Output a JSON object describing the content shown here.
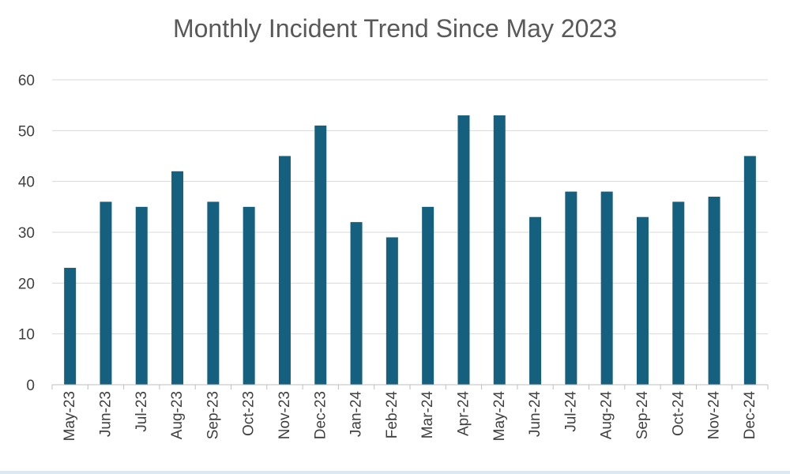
{
  "chart_data": {
    "type": "bar",
    "title": "Monthly Incident Trend Since May 2023",
    "xlabel": "",
    "ylabel": "",
    "categories": [
      "May-23",
      "Jun-23",
      "Jul-23",
      "Aug-23",
      "Sep-23",
      "Oct-23",
      "Nov-23",
      "Dec-23",
      "Jan-24",
      "Feb-24",
      "Mar-24",
      "Apr-24",
      "May-24",
      "Jun-24",
      "Jul-24",
      "Aug-24",
      "Sep-24",
      "Oct-24",
      "Nov-24",
      "Dec-24"
    ],
    "values": [
      23,
      36,
      35,
      42,
      36,
      35,
      45,
      51,
      32,
      29,
      35,
      53,
      53,
      33,
      38,
      38,
      33,
      36,
      37,
      45
    ],
    "ylim": [
      0,
      60
    ],
    "yticks": [
      "0",
      "10",
      "20",
      "30",
      "40",
      "50",
      "60"
    ],
    "grid": true,
    "legend": "none",
    "bar_color": "#16607f",
    "grid_color": "#d9d9d9",
    "axis_color": "#bfbfbf"
  }
}
